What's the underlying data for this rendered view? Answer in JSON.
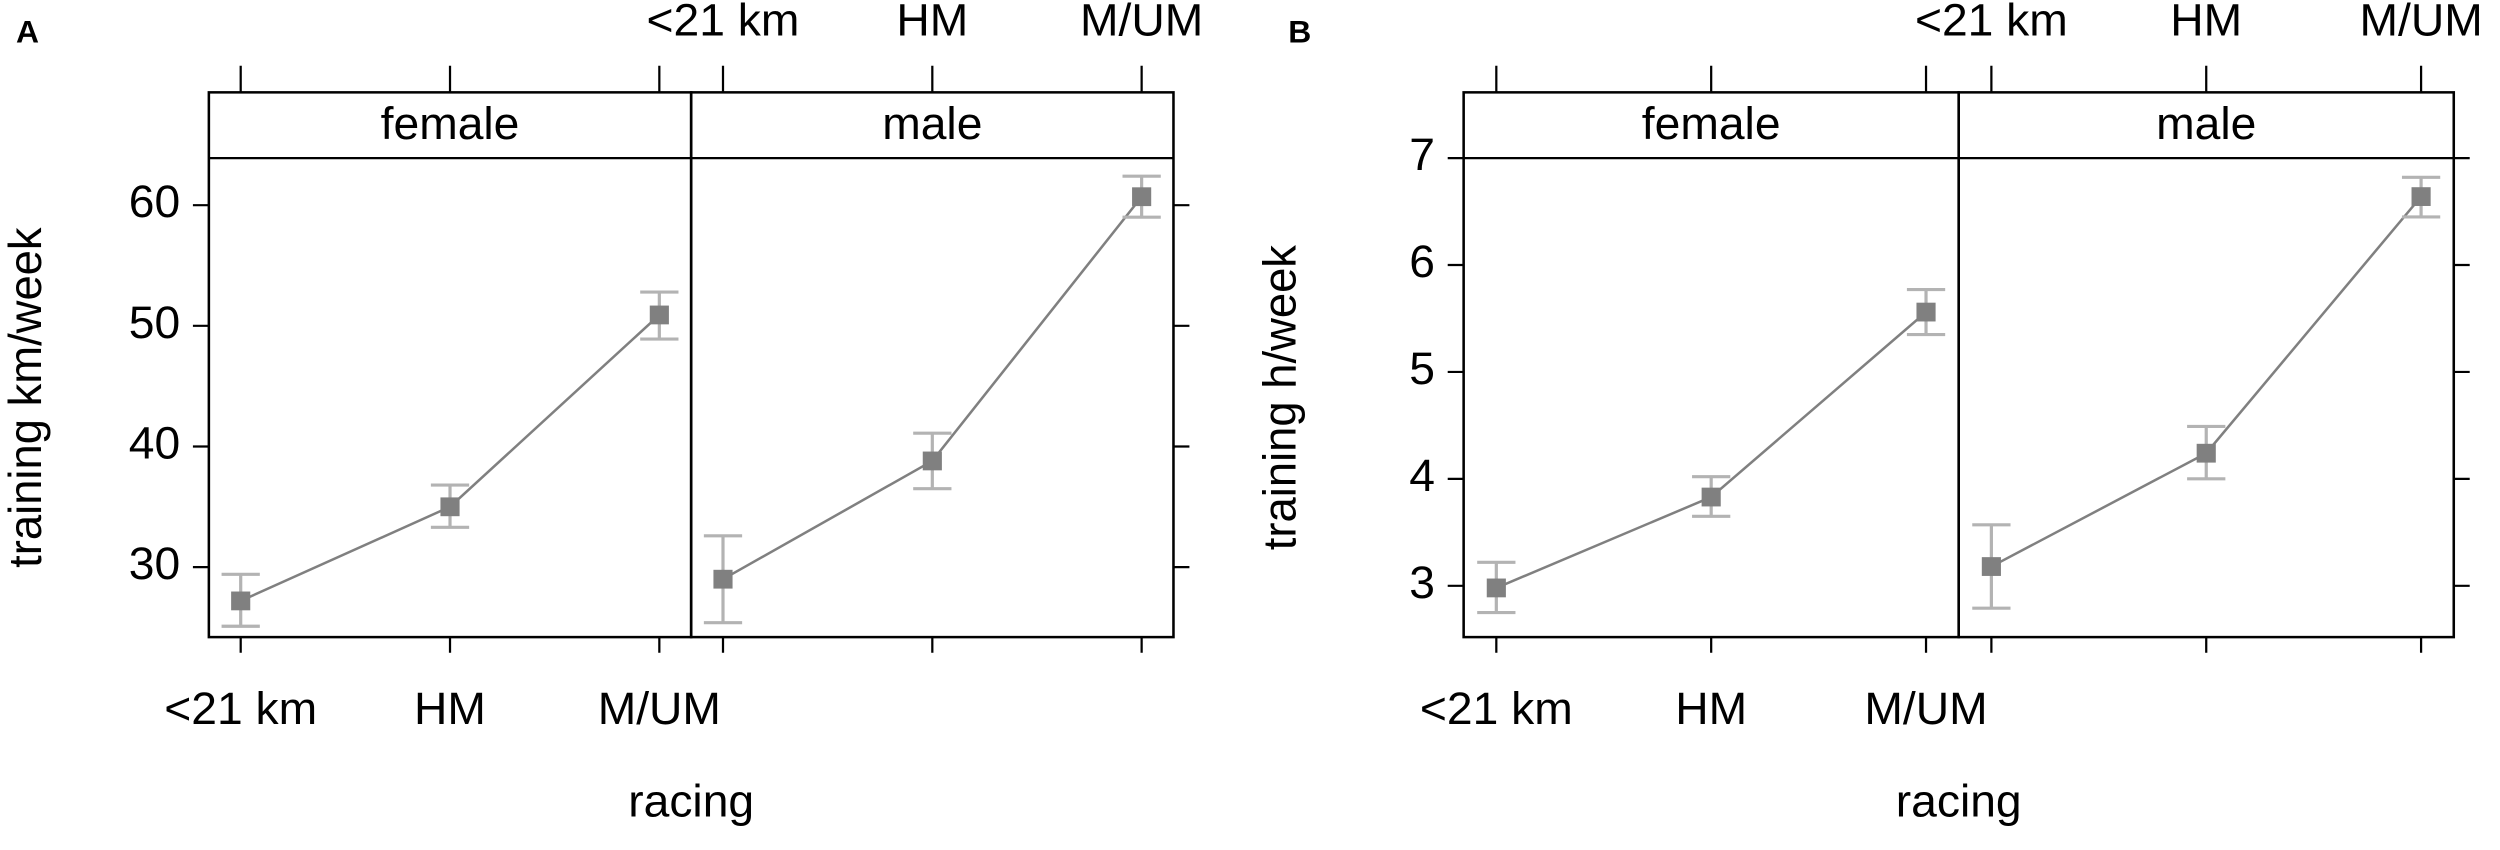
{
  "chart_data": [
    {
      "type": "line",
      "panel_label": "A",
      "ylabel": "training km/week",
      "xlabel": "racing",
      "categories": [
        "<21 km",
        "HM",
        "M/UM"
      ],
      "color": "#808080",
      "error_color": "#b3b3b3",
      "series": [
        {
          "name": "female",
          "values": [
            27.2,
            35.0,
            50.9
          ],
          "lower": [
            25.1,
            33.3,
            48.9
          ],
          "upper": [
            29.4,
            36.8,
            52.8
          ]
        },
        {
          "name": "male",
          "values": [
            29.0,
            38.8,
            60.7
          ],
          "lower": [
            25.4,
            36.5,
            59.0
          ],
          "upper": [
            32.6,
            41.1,
            62.4
          ]
        }
      ],
      "ylim": [
        24.2,
        63.9
      ],
      "yticks": [
        30,
        40,
        50,
        60
      ]
    },
    {
      "type": "line",
      "panel_label": "B",
      "ylabel": "training h/week",
      "xlabel": "racing",
      "categories": [
        "<21 km",
        "HM",
        "M/UM"
      ],
      "color": "#808080",
      "error_color": "#b3b3b3",
      "series": [
        {
          "name": "female",
          "values": [
            2.98,
            3.83,
            5.56
          ],
          "lower": [
            2.75,
            3.65,
            5.35
          ],
          "upper": [
            3.22,
            4.02,
            5.77
          ]
        },
        {
          "name": "male",
          "values": [
            3.18,
            4.24,
            6.64
          ],
          "lower": [
            2.79,
            4.0,
            6.45
          ],
          "upper": [
            3.57,
            4.49,
            6.82
          ]
        }
      ],
      "ylim": [
        2.52,
        7.0
      ],
      "yticks": [
        3,
        4,
        5,
        6,
        7
      ]
    }
  ]
}
